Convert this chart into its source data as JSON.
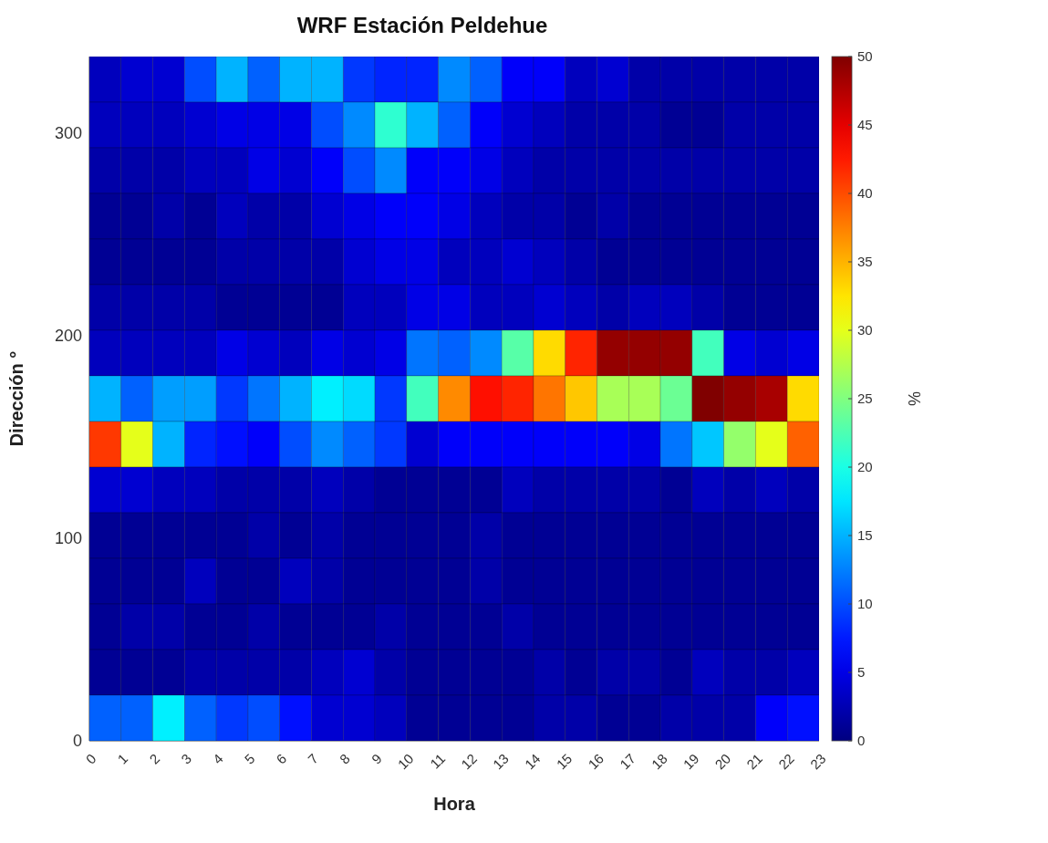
{
  "chart_data": {
    "type": "heatmap",
    "title": "WRF Estación Peldehue",
    "xlabel": "Hora",
    "ylabel": "Dirección °",
    "clabel": "%",
    "xlim": [
      0,
      23
    ],
    "xticks": [
      0,
      1,
      2,
      3,
      4,
      5,
      6,
      7,
      8,
      9,
      10,
      11,
      12,
      13,
      14,
      15,
      16,
      17,
      18,
      19,
      20,
      21,
      22,
      23
    ],
    "ylim": [
      0,
      337.5
    ],
    "yticks": [
      0,
      100,
      200,
      300
    ],
    "clim": [
      0,
      50
    ],
    "cticks": [
      0,
      5,
      10,
      15,
      20,
      25,
      30,
      35,
      40,
      45,
      50
    ],
    "cells": [
      [
        3,
        4,
        4,
        10,
        15,
        11,
        15,
        15,
        9,
        8,
        8,
        13,
        11,
        6,
        6,
        3,
        4,
        2,
        2,
        2,
        2,
        2,
        2
      ],
      [
        3,
        3,
        3,
        4,
        5,
        5,
        5,
        10,
        13,
        21,
        15,
        11,
        6,
        4,
        3,
        2,
        2,
        2,
        1,
        1,
        2,
        2,
        2
      ],
      [
        2,
        2,
        2,
        3,
        3,
        5,
        4,
        6,
        10,
        13,
        6,
        6,
        5,
        3,
        2,
        2,
        2,
        2,
        2,
        2,
        2,
        2,
        2
      ],
      [
        1,
        1,
        2,
        1,
        3,
        2,
        2,
        4,
        5,
        6,
        6,
        5,
        3,
        2,
        2,
        1,
        2,
        1,
        1,
        1,
        1,
        1,
        1
      ],
      [
        1,
        1,
        1,
        1,
        2,
        2,
        2,
        2,
        4,
        5,
        5,
        3,
        3,
        4,
        3,
        2,
        1,
        1,
        1,
        1,
        1,
        1,
        1
      ],
      [
        2,
        2,
        2,
        2,
        1,
        1,
        1,
        1,
        3,
        3,
        5,
        5,
        3,
        3,
        4,
        3,
        2,
        3,
        3,
        2,
        1,
        1,
        1
      ],
      [
        3,
        3,
        3,
        3,
        5,
        4,
        3,
        5,
        4,
        5,
        12,
        11,
        13,
        23,
        33,
        42,
        49,
        49,
        49,
        22,
        5,
        4,
        5
      ],
      [
        15,
        11,
        14,
        14,
        9,
        12,
        15,
        18,
        17,
        9,
        22,
        37,
        43,
        42,
        38,
        34,
        27,
        27,
        24,
        50,
        49,
        48,
        33
      ],
      [
        41,
        30,
        15,
        8,
        7,
        6,
        10,
        13,
        11,
        9,
        4,
        6,
        6,
        6,
        6,
        6,
        6,
        5,
        12,
        16,
        26,
        30,
        39
      ],
      [
        4,
        4,
        3,
        3,
        2,
        2,
        2,
        3,
        2,
        1,
        1,
        1,
        1,
        3,
        2,
        2,
        2,
        2,
        1,
        3,
        2,
        3,
        2
      ],
      [
        1,
        1,
        1,
        1,
        1,
        2,
        1,
        2,
        1,
        1,
        1,
        1,
        2,
        1,
        1,
        1,
        1,
        1,
        1,
        1,
        1,
        1,
        1
      ],
      [
        1,
        1,
        1,
        3,
        1,
        1,
        3,
        2,
        1,
        1,
        1,
        1,
        2,
        1,
        1,
        1,
        1,
        1,
        1,
        1,
        1,
        1,
        1
      ],
      [
        1,
        2,
        2,
        1,
        1,
        2,
        1,
        1,
        1,
        2,
        1,
        1,
        1,
        2,
        1,
        1,
        1,
        1,
        1,
        1,
        1,
        1,
        1
      ],
      [
        1,
        1,
        1,
        2,
        2,
        2,
        2,
        3,
        4,
        2,
        1,
        1,
        1,
        1,
        2,
        1,
        2,
        2,
        1,
        3,
        2,
        2,
        3
      ],
      [
        11,
        11,
        18,
        11,
        9,
        10,
        7,
        4,
        4,
        3,
        1,
        1,
        1,
        1,
        2,
        2,
        1,
        1,
        2,
        2,
        2,
        6,
        7
      ]
    ]
  }
}
